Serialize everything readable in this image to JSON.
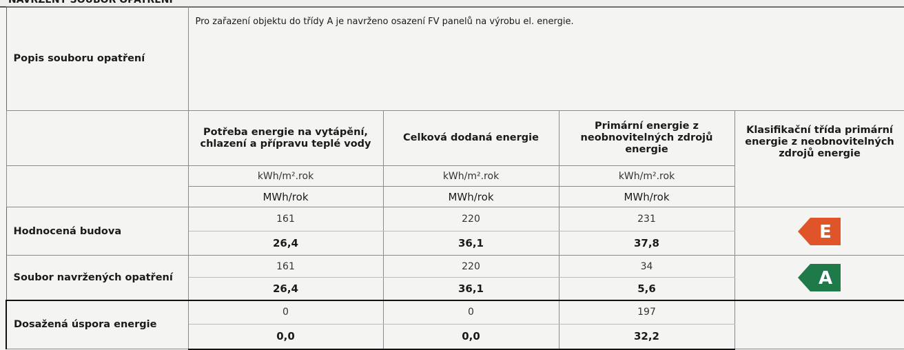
{
  "header": {
    "title": "NAVRŽENÝ SOUBOR OPATŘENÍ"
  },
  "description": {
    "label": "Popis souboru opatření",
    "text": "Pro zařazení objektu do třídy A je navrženo osazení  FV panelů na výrobu el. energie."
  },
  "table": {
    "columns": [
      "Potřeba energie na vytápění, chlazení a přípravu teplé vody",
      "Celková dodaná energie",
      "Primární energie z neobnovitelných zdrojů energie",
      "Klasifikační třída primární energie z neobnovitelných zdrojů energie"
    ],
    "units": [
      "kWh/m².rok",
      "MWh/rok"
    ],
    "rows": [
      {
        "label": "Hodnocená budova",
        "per_m2": [
          "161",
          "220",
          "231"
        ],
        "total": [
          "26,4",
          "36,1",
          "37,8"
        ],
        "class": "E"
      },
      {
        "label": "Soubor navržených opatření",
        "per_m2": [
          "161",
          "220",
          "34"
        ],
        "total": [
          "26,4",
          "36,1",
          "5,6"
        ],
        "class": "A"
      },
      {
        "label": "Dosažená úspora energie",
        "per_m2": [
          "0",
          "0",
          "197"
        ],
        "total": [
          "0,0",
          "0,0",
          "32,2"
        ]
      }
    ]
  }
}
